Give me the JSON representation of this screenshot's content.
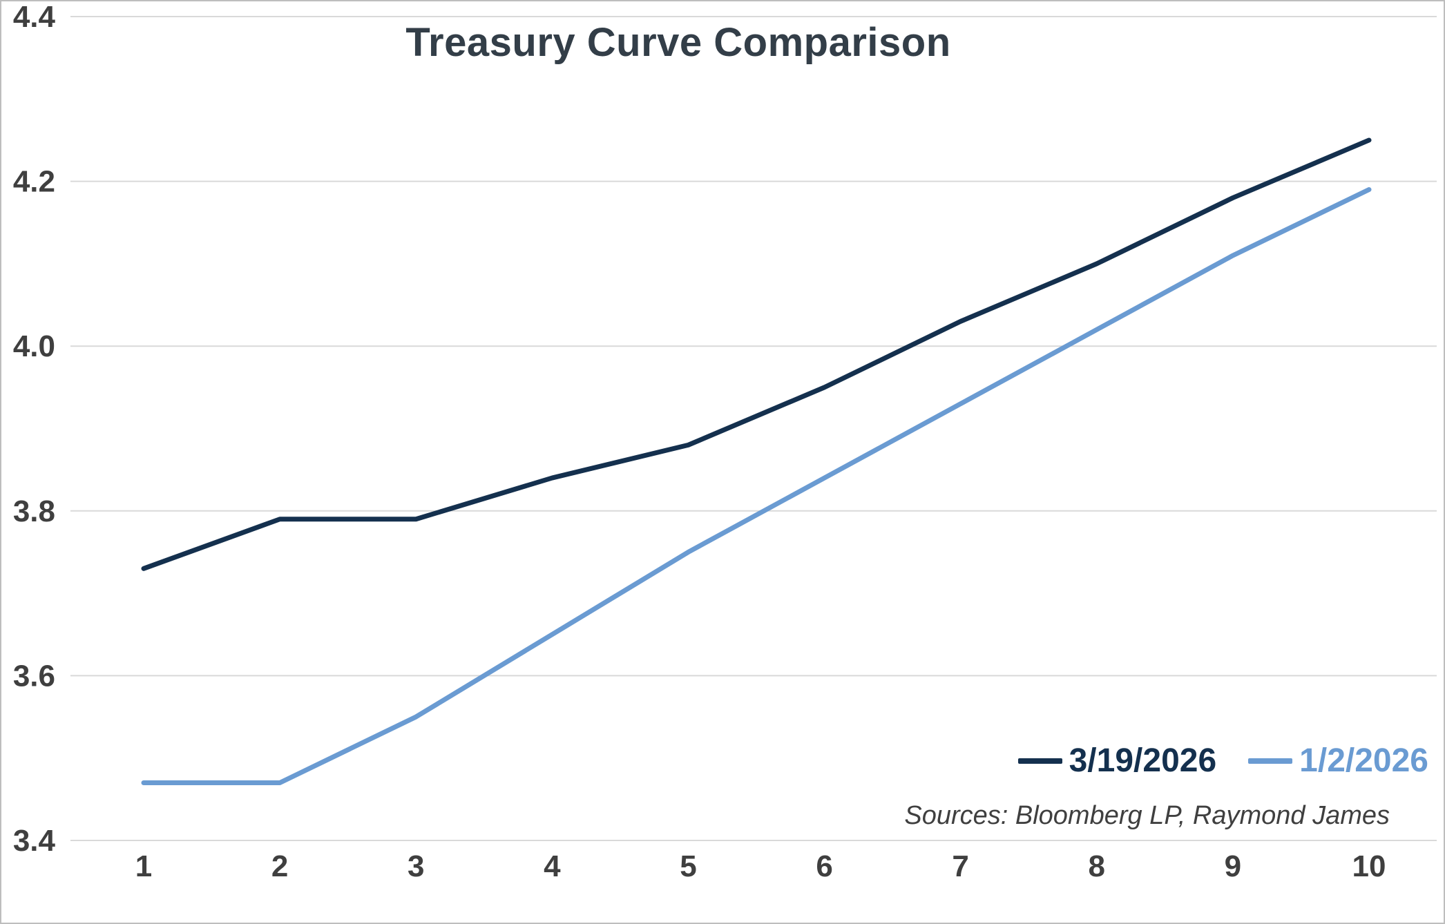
{
  "title": "Treasury Curve Comparison",
  "source_note": "Sources: Bloomberg LP, Raymond James",
  "legend": {
    "items": [
      {
        "label": "3/19/2026",
        "color": "#14304e"
      },
      {
        "label": "1/2/2026",
        "color": "#6a9bd2"
      }
    ]
  },
  "colors": {
    "grid": "#d9d9d9",
    "tick_label": "#3f3f3f",
    "title": "#333e48",
    "border": "#bdbdbd",
    "background": "#ffffff"
  },
  "chart_data": {
    "type": "line",
    "title": "Treasury Curve Comparison",
    "xlabel": "",
    "ylabel": "",
    "x": [
      1,
      2,
      3,
      4,
      5,
      6,
      7,
      8,
      9,
      10
    ],
    "series": [
      {
        "name": "3/19/2026",
        "color": "#14304e",
        "values": [
          3.73,
          3.79,
          3.79,
          3.84,
          3.88,
          3.95,
          4.03,
          4.1,
          4.18,
          4.25
        ]
      },
      {
        "name": "1/2/2026",
        "color": "#6a9bd2",
        "values": [
          3.47,
          3.47,
          3.55,
          3.65,
          3.75,
          3.84,
          3.93,
          4.02,
          4.11,
          4.19
        ]
      }
    ],
    "ylim": [
      3.4,
      4.4
    ],
    "yticks": [
      3.4,
      3.6,
      3.8,
      4.0,
      4.2,
      4.4
    ],
    "xticks": [
      1,
      2,
      3,
      4,
      5,
      6,
      7,
      8,
      9,
      10
    ],
    "grid": "horizontal",
    "legend_position": "bottom-right-inside",
    "source_note": "Sources: Bloomberg LP, Raymond James"
  }
}
